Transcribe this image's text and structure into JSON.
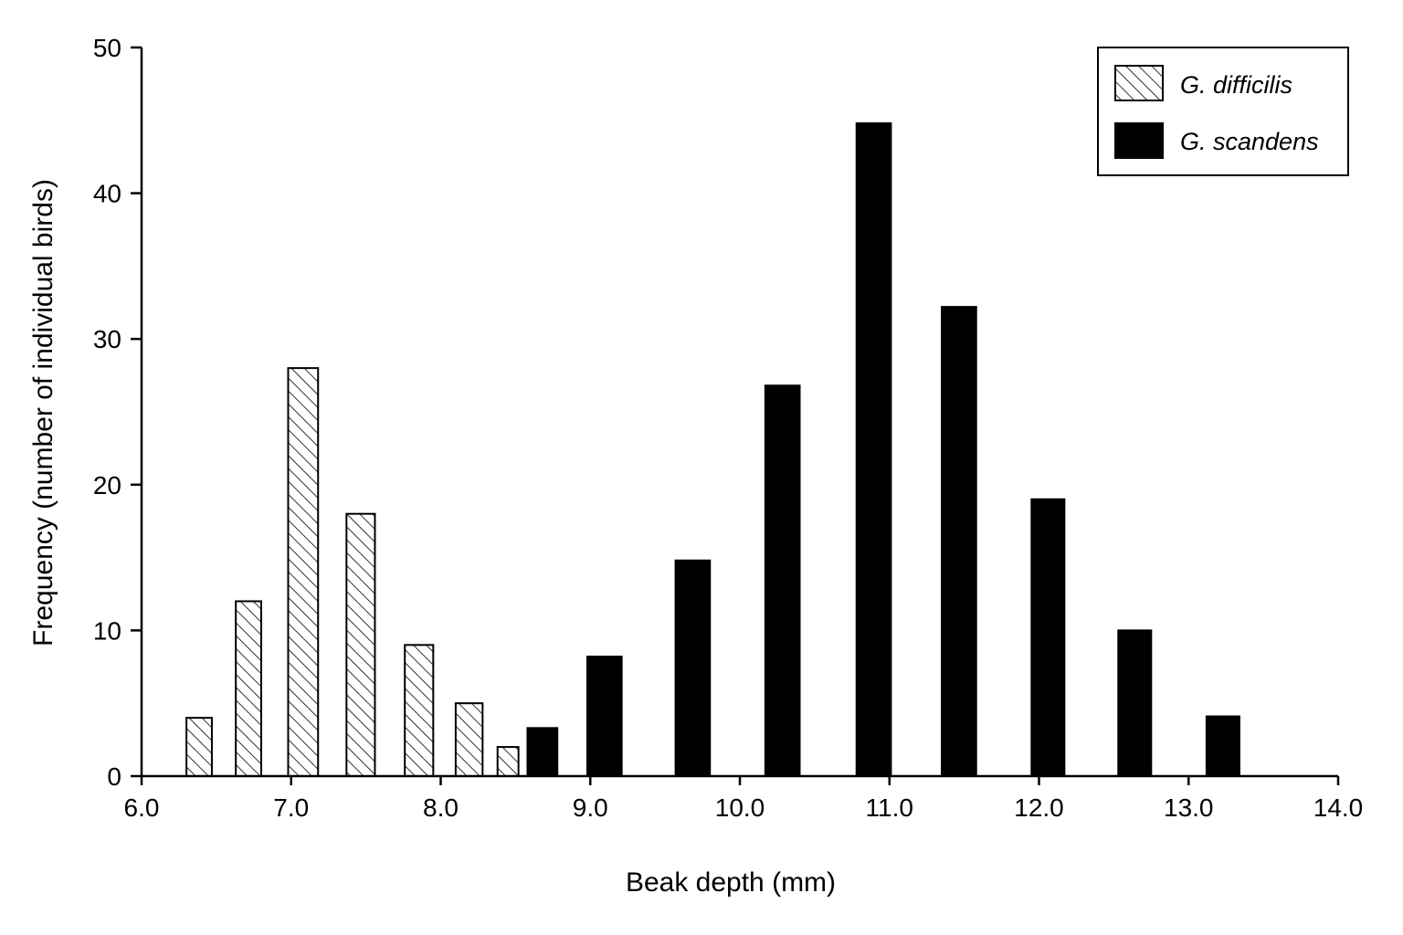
{
  "chart_data": {
    "type": "bar",
    "xlabel": "Beak depth (mm)",
    "ylabel": "Frequency (number of individual birds)",
    "xlim": [
      6.0,
      14.0
    ],
    "ylim": [
      0,
      50
    ],
    "x_ticks": [
      "6.0",
      "7.0",
      "8.0",
      "9.0",
      "10.0",
      "11.0",
      "12.0",
      "13.0",
      "14.0"
    ],
    "y_ticks": [
      "0",
      "10",
      "20",
      "30",
      "40",
      "50"
    ],
    "grid": false,
    "legend_position": "top-right",
    "series": [
      {
        "name": "G. difficilis",
        "fill": "hatched",
        "color": "#000000",
        "bars": [
          {
            "x_start": 6.3,
            "x_end": 6.47,
            "value": 4
          },
          {
            "x_start": 6.63,
            "x_end": 6.8,
            "value": 12
          },
          {
            "x_start": 6.98,
            "x_end": 7.18,
            "value": 28
          },
          {
            "x_start": 7.37,
            "x_end": 7.56,
            "value": 18
          },
          {
            "x_start": 7.76,
            "x_end": 7.95,
            "value": 9
          },
          {
            "x_start": 8.1,
            "x_end": 8.28,
            "value": 5
          },
          {
            "x_start": 8.38,
            "x_end": 8.52,
            "value": 2
          }
        ]
      },
      {
        "name": "G. scandens",
        "fill": "solid",
        "color": "#000000",
        "bars": [
          {
            "x_start": 8.58,
            "x_end": 8.78,
            "value": 3.3
          },
          {
            "x_start": 8.98,
            "x_end": 9.21,
            "value": 8.2
          },
          {
            "x_start": 9.57,
            "x_end": 9.8,
            "value": 14.8
          },
          {
            "x_start": 10.17,
            "x_end": 10.4,
            "value": 26.8
          },
          {
            "x_start": 10.78,
            "x_end": 11.01,
            "value": 44.8
          },
          {
            "x_start": 11.35,
            "x_end": 11.58,
            "value": 32.2
          },
          {
            "x_start": 11.95,
            "x_end": 12.17,
            "value": 19
          },
          {
            "x_start": 12.53,
            "x_end": 12.75,
            "value": 10
          },
          {
            "x_start": 13.12,
            "x_end": 13.34,
            "value": 4.1
          }
        ]
      }
    ]
  }
}
